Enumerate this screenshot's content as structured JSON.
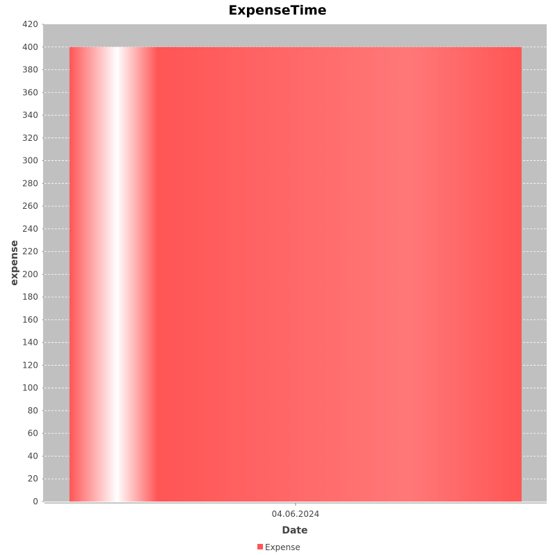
{
  "chart_data": {
    "type": "bar",
    "title": "ExpenseTime",
    "xlabel": "Date",
    "ylabel": "expense",
    "categories": [
      "04.06.2024"
    ],
    "series": [
      {
        "name": "Expense",
        "values": [
          400
        ]
      }
    ],
    "ylim": [
      0,
      420
    ],
    "ytick_step": 20,
    "grid": true,
    "legend_position": "bottom-center",
    "colors": {
      "plot_background": "#c0c0c0",
      "bar": "#ff5555",
      "grid": "#ffffff",
      "axis": "#888888",
      "title": "#000000",
      "text": "#444444"
    }
  }
}
